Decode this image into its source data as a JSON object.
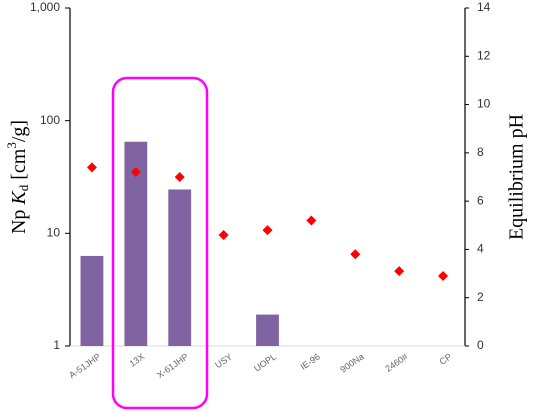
{
  "chart_data": {
    "type": "bar",
    "categories": [
      "A-51JHP",
      "13X",
      "X-61JHP",
      "USY",
      "UOPL",
      "IE-96",
      "900Na",
      "2460#",
      "CP"
    ],
    "series": [
      {
        "type": "bar",
        "color": "#7f64a1",
        "values": [
          6.3,
          65,
          24.5,
          null,
          1.9,
          null,
          null,
          null,
          null
        ]
      },
      {
        "type": "scatter",
        "axis": "y2",
        "color": "#ff0000",
        "marker": "diamond",
        "values": [
          7.4,
          7.2,
          7.0,
          4.6,
          4.8,
          5.2,
          3.8,
          3.1,
          2.9
        ]
      }
    ],
    "ylabel": [
      "Np ",
      "K",
      "d",
      " [cm",
      "3",
      "/g]"
    ],
    "y2label": "Equilibrium pH",
    "ylog": true,
    "ylim": [
      1,
      1000
    ],
    "yticks": [
      1,
      10,
      100,
      {
        "value": 1000,
        "label": "1,000"
      }
    ],
    "y2lim": [
      0,
      14
    ],
    "y2ticks": [
      0,
      2,
      4,
      6,
      8,
      10,
      12,
      14
    ]
  }
}
